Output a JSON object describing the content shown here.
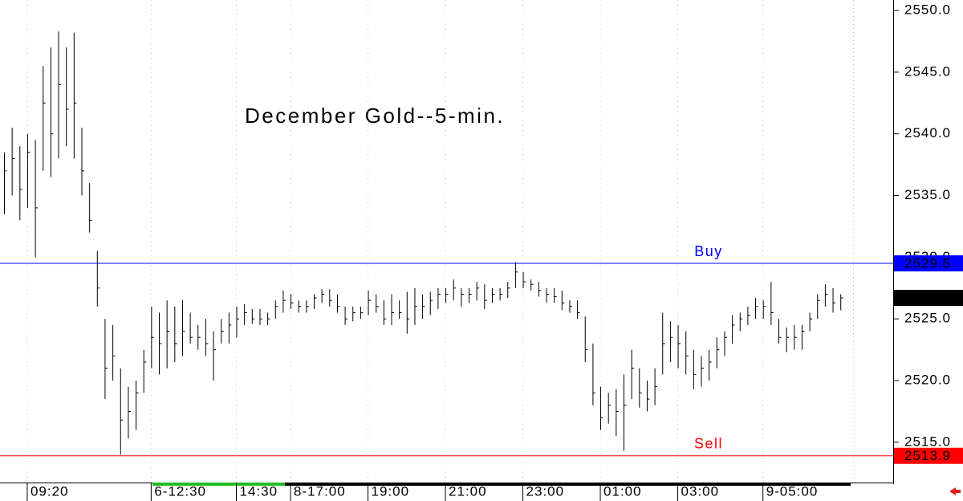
{
  "chart_data": {
    "type": "ohlc",
    "title": "December Gold--5-min.",
    "categories": [
      null,
      null,
      null,
      "09:20",
      null,
      null,
      null,
      null,
      null,
      null,
      null,
      null,
      null,
      null,
      null,
      null,
      null,
      null,
      null,
      "6-12:30",
      null,
      null,
      null,
      null,
      null,
      null,
      null,
      null,
      null,
      null,
      "14:30",
      null,
      null,
      null,
      null,
      null,
      null,
      "8-17:00",
      null,
      null,
      null,
      null,
      null,
      null,
      null,
      null,
      null,
      "19:00",
      null,
      null,
      null,
      null,
      null,
      null,
      null,
      null,
      null,
      "21:00",
      null,
      null,
      null,
      null,
      null,
      null,
      null,
      null,
      null,
      "23:00",
      null,
      null,
      null,
      null,
      null,
      null,
      null,
      null,
      null,
      "01:00",
      null,
      null,
      null,
      null,
      null,
      null,
      null,
      null,
      null,
      "03:00",
      null,
      null,
      null,
      null,
      null,
      null,
      null,
      null,
      null,
      null,
      "9-05:00",
      null,
      null,
      null,
      null,
      null,
      null,
      null,
      null,
      null,
      null
    ],
    "high": [
      2538.5,
      2540.5,
      2539,
      2540,
      2539.5,
      2545.5,
      2547,
      2548.3,
      2547,
      2548.2,
      2540.5,
      2536,
      2530.5,
      2525,
      2524.5,
      2521,
      2519.5,
      2520,
      2522.5,
      2526,
      2525.5,
      2526.5,
      2526,
      2526.5,
      2525.5,
      2524.5,
      2525,
      2524,
      2525,
      2525.5,
      2526,
      2526.2,
      2525.8,
      2525.8,
      2525.5,
      2526.5,
      2527.3,
      2527,
      2526.5,
      2526.5,
      2527,
      2527.4,
      2527.4,
      2527,
      2526,
      2526,
      2526,
      2527.3,
      2527,
      2526.5,
      2527,
      2526.5,
      2527.2,
      2527.5,
      2527,
      2527.2,
      2527.5,
      2527.5,
      2528.2,
      2527.5,
      2527.5,
      2528,
      2527.8,
      2527.5,
      2527.5,
      2528,
      2529.6,
      2528.8,
      2528.2,
      2528,
      2527.5,
      2527.5,
      2527.3,
      2526.5,
      2526.5,
      2525.2,
      2523,
      2519.5,
      2519,
      2519.3,
      2520.5,
      2522.5,
      2521,
      2520,
      2521,
      2525.5,
      2524.8,
      2524.5,
      2524,
      2522.5,
      2522,
      2522.5,
      2523.5,
      2524,
      2525.3,
      2525.5,
      2526,
      2526.7,
      2526.5,
      2528,
      2525,
      2524.3,
      2524.5,
      2524.5,
      2525.5,
      2527,
      2527.8,
      2527.5,
      2527
    ],
    "low": [
      2533.5,
      2535,
      2533,
      2534,
      2530,
      2537,
      2536.5,
      2538,
      2539,
      2538,
      2535,
      2532,
      2526,
      2518.5,
      2520,
      2514,
      2515.3,
      2516,
      2519,
      2521,
      2520.5,
      2521,
      2521.5,
      2522,
      2523,
      2522.5,
      2522,
      2520,
      2523,
      2523,
      2523.5,
      2524.5,
      2524.6,
      2524.5,
      2524.5,
      2525,
      2525.5,
      2525.8,
      2525.5,
      2525.5,
      2525.8,
      2526.3,
      2526,
      2525.5,
      2524.5,
      2524.8,
      2525,
      2525.3,
      2525.5,
      2524.5,
      2524.5,
      2525,
      2523.8,
      2524.5,
      2525,
      2525.3,
      2525.8,
      2526.3,
      2526.5,
      2526,
      2526.3,
      2526.5,
      2525.8,
      2526.3,
      2526.5,
      2526.7,
      2527.5,
      2527.5,
      2527.3,
      2526.8,
      2526.3,
      2526.3,
      2525.7,
      2525.5,
      2525,
      2521.5,
      2518,
      2516,
      2516.5,
      2515.5,
      2514.3,
      2518.5,
      2517.8,
      2517.5,
      2518,
      2520.5,
      2521.5,
      2521,
      2520.5,
      2519.3,
      2519.5,
      2520,
      2521,
      2522,
      2523,
      2524,
      2524.5,
      2525,
      2525,
      2524.5,
      2523,
      2522.3,
      2522.5,
      2522.5,
      2524,
      2525,
      2526,
      2525.5,
      2525.7
    ],
    "close": [
      2537,
      2538,
      2535.5,
      2538.5,
      2534,
      2542.5,
      2540,
      2544,
      2542,
      2542.5,
      2537,
      2533,
      2527.5,
      2521,
      2522,
      2516.8,
      2517.5,
      2519,
      2521.5,
      2523.5,
      2523,
      2524,
      2523,
      2524,
      2523.5,
      2523.5,
      2523,
      2522.5,
      2524,
      2524.5,
      2525,
      2525.5,
      2525,
      2525,
      2525,
      2526,
      2526.5,
      2526.3,
      2526,
      2526,
      2526.7,
      2527,
      2526.5,
      2526,
      2525,
      2525.5,
      2525.5,
      2526.5,
      2526,
      2525,
      2525.5,
      2525.5,
      2525,
      2526,
      2526,
      2526.5,
      2527,
      2527,
      2527.5,
      2527,
      2527,
      2527.5,
      2526.5,
      2527,
      2527,
      2527.5,
      2528.8,
      2528,
      2527.8,
      2527.3,
      2527,
      2526.8,
      2526.3,
      2526,
      2525.5,
      2522.5,
      2519,
      2517,
      2518,
      2517.5,
      2518,
      2521,
      2519,
      2518.5,
      2519.5,
      2523,
      2523.5,
      2523,
      2522,
      2520.5,
      2521,
      2521.5,
      2522.5,
      2523.5,
      2524.5,
      2525,
      2525.3,
      2526,
      2526,
      2525.5,
      2523.5,
      2523.5,
      2523.5,
      2524,
      2525,
      2526.5,
      2527,
      2526.3,
      2526.7
    ],
    "color": "#000000",
    "ylim": [
      2511.8,
      2550.85
    ],
    "yticks": [
      {
        "value": 2515,
        "label": "2515.0"
      },
      {
        "value": 2520,
        "label": "2520.0"
      },
      {
        "value": 2525,
        "label": "2525.0"
      },
      {
        "value": 2530,
        "label": "2530.0"
      },
      {
        "value": 2535,
        "label": "2535.0"
      },
      {
        "value": 2540,
        "label": "2540.0"
      },
      {
        "value": 2545,
        "label": "2545.0"
      },
      {
        "value": 2550,
        "label": "2550.0"
      }
    ],
    "levels": [
      {
        "label": "Buy",
        "value": 2529.5,
        "color": "#0000ff"
      },
      {
        "label": "Sell",
        "value": 2513.9,
        "color": "#ff0000"
      }
    ],
    "last_price": 2526.7
  }
}
